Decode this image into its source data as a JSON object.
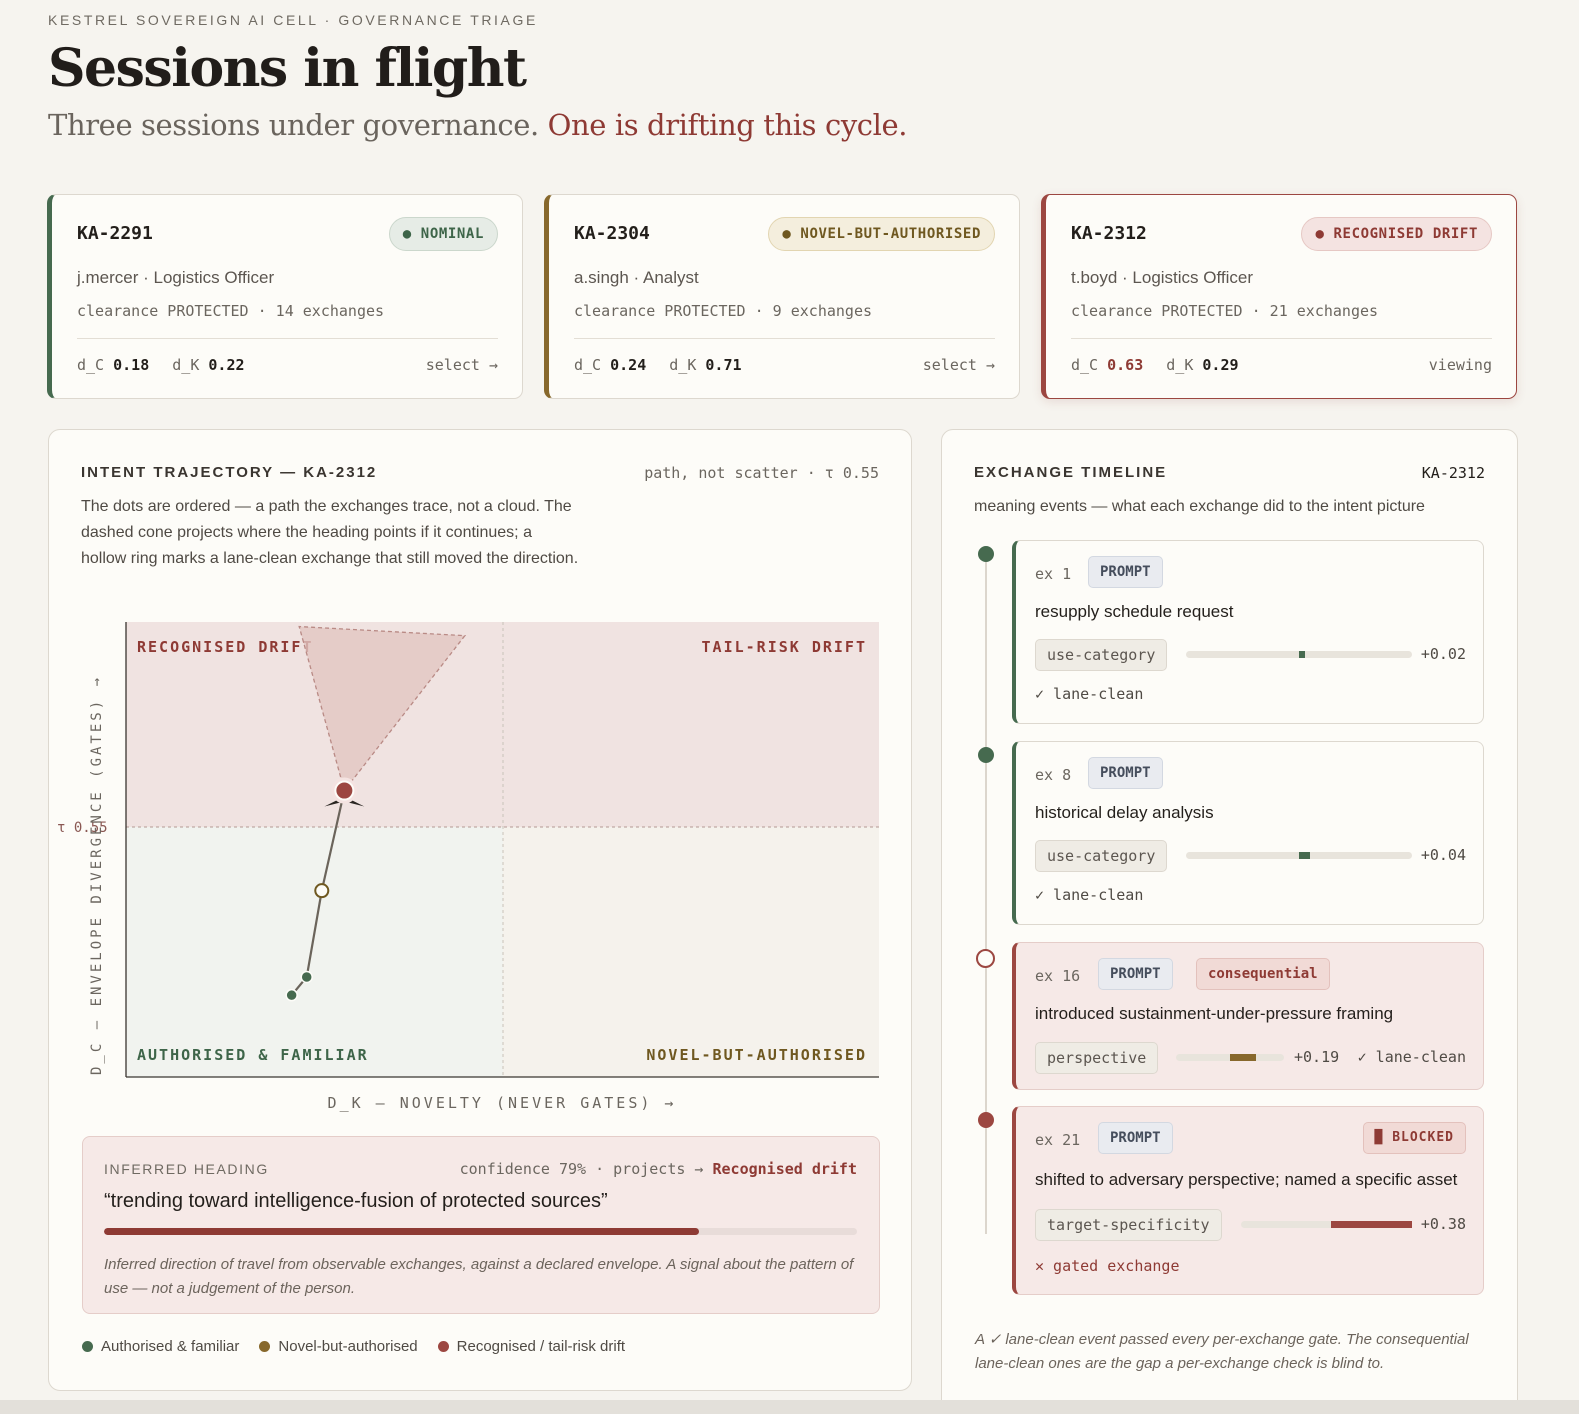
{
  "header": {
    "eyebrow": "KESTREL SOVEREIGN AI CELL · GOVERNANCE TRIAGE",
    "title": "Sessions in flight",
    "subtitle_lead": "Three sessions under governance.",
    "subtitle_alert": "One is drifting this cycle."
  },
  "sessions": [
    {
      "id": "KA-2291",
      "status": "● NOMINAL",
      "user": "j.mercer · Logistics Officer",
      "meta": "clearance PROTECTED · 14 exchanges",
      "dc_label": "d_C",
      "dc": "0.18",
      "dk_label": "d_K",
      "dk": "0.22",
      "action": "select →"
    },
    {
      "id": "KA-2304",
      "status": "● NOVEL-BUT-AUTHORISED",
      "user": "a.singh · Analyst",
      "meta": "clearance PROTECTED · 9 exchanges",
      "dc_label": "d_C",
      "dc": "0.24",
      "dk_label": "d_K",
      "dk": "0.71",
      "action": "select →"
    },
    {
      "id": "KA-2312",
      "status": "● RECOGNISED DRIFT",
      "user": "t.boyd · Logistics Officer",
      "meta": "clearance PROTECTED · 21 exchanges",
      "dc_label": "d_C",
      "dc": "0.63",
      "dk_label": "d_K",
      "dk": "0.29",
      "action": "viewing"
    }
  ],
  "trajectory": {
    "heading": "INTENT TRAJECTORY — KA-2312",
    "heading_right": "path, not scatter · τ 0.55",
    "description": "The dots are ordered — a path the exchanges trace, not a cloud. The dashed cone projects where the heading points if it continues; a hollow ring marks a lane-clean exchange that still moved the direction.",
    "quadrants": {
      "top_left": "RECOGNISED DRIFT",
      "top_right": "TAIL-RISK DRIFT",
      "bottom_left": "AUTHORISED & FAMILIAR",
      "bottom_right": "NOVEL-BUT-AUTHORISED"
    },
    "y_axis_label": "D_C — ENVELOPE DIVERGENCE (GATES) →",
    "x_axis_label": "D_K — NOVELTY (NEVER GATES) →",
    "tau_label": "τ 0.55"
  },
  "chart_data": {
    "type": "line",
    "x_label": "D_K — NOVELTY (NEVER GATES) →",
    "y_label": "D_C — ENVELOPE DIVERGENCE (GATES) →",
    "xlim": [
      0,
      1
    ],
    "ylim": [
      0,
      1
    ],
    "threshold_y": 0.55,
    "threshold_x": 0.5,
    "points": [
      {
        "exchange": 1,
        "x": 0.22,
        "y": 0.18,
        "kind": "lane-clean"
      },
      {
        "exchange": 8,
        "x": 0.24,
        "y": 0.22,
        "kind": "lane-clean"
      },
      {
        "exchange": 16,
        "x": 0.26,
        "y": 0.41,
        "kind": "consequential-lane-clean"
      },
      {
        "exchange": 21,
        "x": 0.29,
        "y": 0.63,
        "kind": "gated"
      }
    ],
    "cone": {
      "apex": [
        0.29,
        0.63
      ],
      "left": [
        0.23,
        0.99
      ],
      "right": [
        0.45,
        0.97
      ]
    }
  },
  "inferred": {
    "label": "INFERRED HEADING",
    "confidence_text": "confidence 79% · projects →",
    "projects": "Recognised drift",
    "confidence": 0.79,
    "quote": "“trending toward intelligence-fusion of protected sources”",
    "note": "Inferred direction of travel from observable exchanges, against a declared envelope. A signal about the pattern of use — not a judgement of the person."
  },
  "legend": [
    {
      "label": "Authorised & familiar",
      "color": "#466a4f"
    },
    {
      "label": "Novel-but-authorised",
      "color": "#87682c"
    },
    {
      "label": "Recognised / tail-risk drift",
      "color": "#9c4741"
    }
  ],
  "timeline": {
    "heading": "EXCHANGE TIMELINE",
    "session": "KA-2312",
    "description": "meaning events — what each exchange did to the intent picture",
    "events": [
      {
        "ex": "ex 1",
        "tag": "PROMPT",
        "text": "resupply schedule request",
        "chip": "use-category",
        "value": "+0.02",
        "delta": 0.02,
        "status": "✓ lane-clean"
      },
      {
        "ex": "ex 8",
        "tag": "PROMPT",
        "text": "historical delay analysis",
        "chip": "use-category",
        "value": "+0.04",
        "delta": 0.04,
        "status": "✓ lane-clean"
      },
      {
        "ex": "ex 16",
        "tag": "PROMPT",
        "tag2": "consequential",
        "text": "introduced sustainment-under-pressure framing",
        "chip": "perspective",
        "value": "+0.19",
        "delta": 0.19,
        "status": "✓ lane-clean"
      },
      {
        "ex": "ex 21",
        "tag": "PROMPT",
        "tag2": "█ BLOCKED",
        "text": "shifted to adversary perspective; named a specific asset",
        "chip": "target-specificity",
        "value": "+0.38",
        "delta": 0.38,
        "status": "✕ gated exchange"
      }
    ],
    "footnote": "A ✓ lane-clean event passed every per-exchange gate. The consequential lane-clean ones are the gap a per-exchange check is blind to."
  },
  "colors": {
    "green": "#466a4f",
    "amber": "#87682c",
    "red": "#9c4741"
  }
}
